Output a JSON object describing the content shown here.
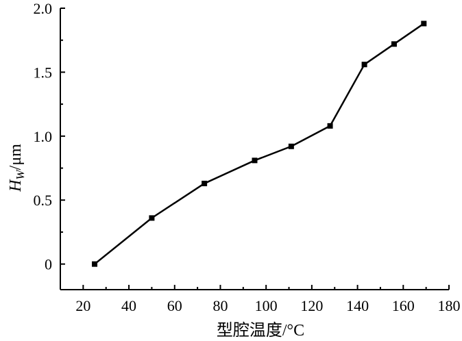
{
  "chart_data": {
    "type": "line",
    "title": "",
    "xlabel": "型腔温度/°C",
    "ylabel": "H",
    "ylabel_sub": "W",
    "ylabel_unit": "/μm",
    "xlim": [
      10,
      180
    ],
    "ylim": [
      -0.2,
      2.0
    ],
    "xticks": [
      20,
      40,
      60,
      80,
      100,
      120,
      140,
      160,
      180
    ],
    "yticks": [
      0,
      0.5,
      1.0,
      1.5,
      2.0
    ],
    "xtick_labels": [
      "20",
      "40",
      "60",
      "80",
      "100",
      "120",
      "140",
      "160",
      "180"
    ],
    "ytick_labels": [
      "0",
      "0.5",
      "1.0",
      "1.5",
      "2.0"
    ],
    "grid": false,
    "series": [
      {
        "x": [
          25,
          50,
          73,
          95,
          111,
          128,
          143,
          156,
          169
        ],
        "y": [
          0.0,
          0.36,
          0.63,
          0.81,
          0.92,
          1.08,
          1.56,
          1.72,
          1.88
        ]
      }
    ],
    "line_color": "#000000"
  }
}
